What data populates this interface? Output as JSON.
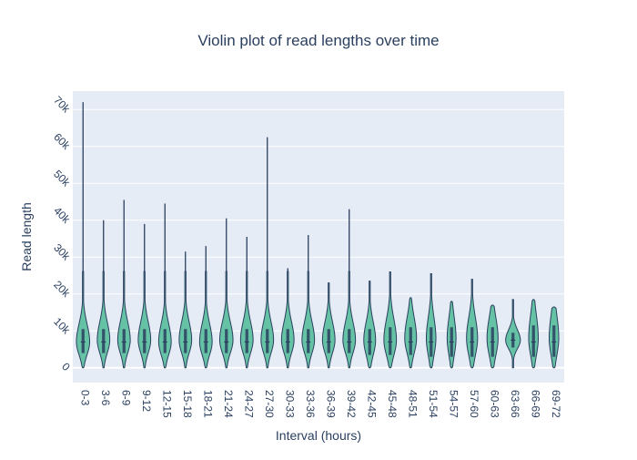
{
  "chart_data": {
    "type": "violin",
    "title": "Violin plot of read lengths over time",
    "xlabel": "Interval (hours)",
    "ylabel": "Read length",
    "ylim": [
      -4000,
      75000
    ],
    "yticks": [
      0,
      10000,
      20000,
      30000,
      40000,
      50000,
      60000,
      70000
    ],
    "ytick_labels": [
      "0",
      "10k",
      "20k",
      "30k",
      "40k",
      "50k",
      "60k",
      "70k"
    ],
    "grid": true,
    "legend": "none",
    "colors": {
      "fill": "#66c2a5",
      "stroke": "#2a3f5f",
      "plot_bg": "#e5ecf6",
      "grid": "#ffffff",
      "text": "#2a3f5f"
    },
    "categories": [
      "0-3",
      "3-6",
      "6-9",
      "9-12",
      "12-15",
      "15-18",
      "18-21",
      "21-24",
      "24-27",
      "27-30",
      "30-33",
      "33-36",
      "36-39",
      "39-42",
      "42-45",
      "45-48",
      "48-51",
      "51-54",
      "54-57",
      "57-60",
      "60-63",
      "63-66",
      "66-69",
      "69-72"
    ],
    "series": [
      {
        "values": [
          {
            "min": 0,
            "q1": 4000,
            "median": 7000,
            "q3": 10500,
            "max": 72000,
            "mode": 7000,
            "width": 0.9
          },
          {
            "min": 0,
            "q1": 4000,
            "median": 7000,
            "q3": 10500,
            "max": 40000,
            "mode": 7500,
            "width": 0.85
          },
          {
            "min": 0,
            "q1": 4000,
            "median": 7000,
            "q3": 10500,
            "max": 45500,
            "mode": 7500,
            "width": 0.85
          },
          {
            "min": 0,
            "q1": 4000,
            "median": 7000,
            "q3": 10500,
            "max": 39000,
            "mode": 7500,
            "width": 0.85
          },
          {
            "min": 0,
            "q1": 4000,
            "median": 7000,
            "q3": 10500,
            "max": 44500,
            "mode": 7000,
            "width": 0.85
          },
          {
            "min": 0,
            "q1": 4000,
            "median": 7000,
            "q3": 10500,
            "max": 31500,
            "mode": 7500,
            "width": 0.85
          },
          {
            "min": 0,
            "q1": 4000,
            "median": 7000,
            "q3": 10500,
            "max": 33000,
            "mode": 7000,
            "width": 0.85
          },
          {
            "min": 0,
            "q1": 4000,
            "median": 7000,
            "q3": 10500,
            "max": 40500,
            "mode": 7500,
            "width": 0.9
          },
          {
            "min": 0,
            "q1": 4000,
            "median": 7000,
            "q3": 10500,
            "max": 35500,
            "mode": 7500,
            "width": 0.85
          },
          {
            "min": 0,
            "q1": 4000,
            "median": 7000,
            "q3": 10500,
            "max": 62500,
            "mode": 7500,
            "width": 0.85
          },
          {
            "min": 0,
            "q1": 4000,
            "median": 7000,
            "q3": 10500,
            "max": 27000,
            "mode": 7500,
            "width": 0.85
          },
          {
            "min": 0,
            "q1": 4000,
            "median": 7000,
            "q3": 10500,
            "max": 36000,
            "mode": 7500,
            "width": 0.85
          },
          {
            "min": 0,
            "q1": 4000,
            "median": 7000,
            "q3": 10500,
            "max": 23000,
            "mode": 7500,
            "width": 0.85
          },
          {
            "min": 0,
            "q1": 4000,
            "median": 7000,
            "q3": 10500,
            "max": 43000,
            "mode": 7500,
            "width": 0.85
          },
          {
            "min": 0,
            "q1": 3500,
            "median": 7000,
            "q3": 10500,
            "max": 23500,
            "mode": 7500,
            "width": 0.8
          },
          {
            "min": 0,
            "q1": 3500,
            "median": 7000,
            "q3": 11000,
            "max": 26000,
            "mode": 7500,
            "width": 0.85
          },
          {
            "min": 0,
            "q1": 3500,
            "median": 7000,
            "q3": 11000,
            "max": 19000,
            "mode": 8000,
            "width": 0.8
          },
          {
            "min": 0,
            "q1": 3000,
            "median": 7000,
            "q3": 11000,
            "max": 25500,
            "mode": 8000,
            "width": 0.65
          },
          {
            "min": 0,
            "q1": 3000,
            "median": 7000,
            "q3": 11000,
            "max": 18000,
            "mode": 8000,
            "width": 0.6
          },
          {
            "min": 0,
            "q1": 3000,
            "median": 7000,
            "q3": 11000,
            "max": 24000,
            "mode": 8000,
            "width": 0.75
          },
          {
            "min": 0,
            "q1": 3000,
            "median": 7000,
            "q3": 11000,
            "max": 17000,
            "mode": 8000,
            "width": 0.75
          },
          {
            "min": 0,
            "q1": 5500,
            "median": 7500,
            "q3": 9500,
            "max": 18500,
            "mode": 7500,
            "width": 1.0
          },
          {
            "min": 0,
            "q1": 3000,
            "median": 7000,
            "q3": 11500,
            "max": 18500,
            "mode": 8000,
            "width": 0.65
          },
          {
            "min": 0,
            "q1": 3000,
            "median": 7000,
            "q3": 11500,
            "max": 16500,
            "mode": 8000,
            "width": 0.65
          }
        ]
      }
    ]
  }
}
